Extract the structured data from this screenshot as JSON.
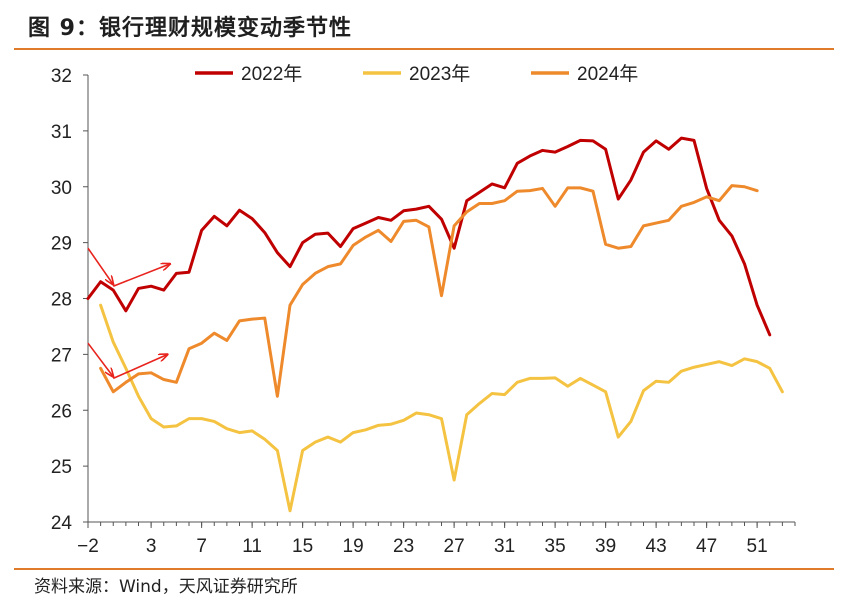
{
  "title": "图 9：银行理财规模变动季节性",
  "source": "资料来源：Wind，天风证券研究所",
  "colors": {
    "s2022": "#c00000",
    "s2023": "#f5c342",
    "s2024": "#ee8a2c",
    "arrow": "#e8231d",
    "axis": "#555555",
    "rule": "#e07b2a"
  },
  "chart_data": {
    "type": "line",
    "ylim": [
      24,
      32
    ],
    "yticks": [
      24,
      25,
      26,
      27,
      28,
      29,
      30,
      31,
      32
    ],
    "xlim": [
      -2,
      54
    ],
    "xticks": [
      -2,
      3,
      7,
      11,
      15,
      19,
      23,
      27,
      31,
      35,
      39,
      43,
      47,
      51
    ],
    "xtick_labels": [
      "−2",
      "3",
      "7",
      "11",
      "15",
      "19",
      "23",
      "27",
      "31",
      "35",
      "39",
      "43",
      "47",
      "51"
    ],
    "legend_position": "top",
    "grid": false,
    "series": [
      {
        "name": "2022年",
        "color": "#c00000",
        "x": [
          -2,
          -1,
          0,
          1,
          2,
          3,
          4,
          5,
          6,
          7,
          8,
          9,
          10,
          11,
          12,
          13,
          14,
          15,
          16,
          17,
          18,
          19,
          20,
          21,
          22,
          23,
          24,
          25,
          26,
          27,
          28,
          29,
          30,
          31,
          32,
          33,
          34,
          35,
          36,
          37,
          38,
          39,
          40,
          41,
          42,
          43,
          44,
          45,
          46,
          47,
          48,
          49,
          50,
          51,
          52,
          53
        ],
        "y": [
          28.0,
          28.3,
          28.15,
          27.78,
          28.18,
          28.22,
          28.15,
          28.45,
          28.47,
          29.22,
          29.47,
          29.3,
          29.58,
          29.43,
          29.18,
          28.82,
          28.57,
          29.0,
          29.15,
          29.17,
          28.93,
          29.25,
          29.35,
          29.45,
          29.4,
          29.57,
          29.6,
          29.65,
          29.42,
          28.9,
          29.75,
          29.9,
          30.05,
          29.98,
          30.42,
          30.55,
          30.65,
          30.62,
          30.72,
          30.83,
          30.82,
          30.67,
          29.78,
          30.12,
          30.62,
          30.82,
          30.67,
          30.87,
          30.83,
          29.97,
          29.4,
          29.12,
          28.62,
          27.88,
          27.35,
          null
        ]
      },
      {
        "name": "2023年",
        "color": "#f5c342",
        "x": [
          -2,
          -1,
          0,
          1,
          2,
          3,
          4,
          5,
          6,
          7,
          8,
          9,
          10,
          11,
          12,
          13,
          14,
          15,
          16,
          17,
          18,
          19,
          20,
          21,
          22,
          23,
          24,
          25,
          26,
          27,
          28,
          29,
          30,
          31,
          32,
          33,
          34,
          35,
          36,
          37,
          38,
          39,
          40,
          41,
          42,
          43,
          44,
          45,
          46,
          47,
          48,
          49,
          50,
          51,
          52,
          53
        ],
        "y": [
          null,
          27.88,
          27.22,
          26.75,
          26.25,
          25.85,
          25.7,
          25.72,
          25.85,
          25.85,
          25.8,
          25.67,
          25.6,
          25.63,
          25.48,
          25.28,
          24.2,
          25.28,
          25.43,
          25.52,
          25.43,
          25.6,
          25.65,
          25.73,
          25.75,
          25.82,
          25.95,
          25.92,
          25.85,
          24.75,
          25.92,
          26.12,
          26.3,
          26.28,
          26.5,
          26.57,
          26.57,
          26.58,
          26.43,
          26.57,
          26.45,
          26.33,
          25.52,
          25.8,
          26.35,
          26.52,
          26.5,
          26.7,
          26.77,
          26.82,
          26.87,
          26.8,
          26.92,
          26.87,
          26.75,
          26.33
        ]
      },
      {
        "name": "2024年",
        "color": "#ee8a2c",
        "x": [
          -2,
          -1,
          0,
          1,
          2,
          3,
          4,
          5,
          6,
          7,
          8,
          9,
          10,
          11,
          12,
          13,
          14,
          15,
          16,
          17,
          18,
          19,
          20,
          21,
          22,
          23,
          24,
          25,
          26,
          27,
          28,
          29,
          30,
          31,
          32,
          33,
          34,
          35,
          36,
          37,
          38,
          39,
          40,
          41,
          42,
          43,
          44,
          45,
          46,
          47,
          48,
          49,
          50,
          51,
          52,
          53
        ],
        "y": [
          null,
          26.75,
          26.33,
          26.5,
          26.65,
          26.67,
          26.55,
          26.5,
          27.1,
          27.2,
          27.38,
          27.25,
          27.6,
          27.63,
          27.65,
          26.25,
          27.88,
          28.25,
          28.45,
          28.57,
          28.62,
          28.95,
          29.1,
          29.22,
          29.02,
          29.38,
          29.4,
          29.28,
          28.05,
          29.3,
          29.55,
          29.7,
          29.7,
          29.75,
          29.92,
          29.93,
          29.97,
          29.65,
          29.98,
          29.98,
          29.92,
          28.97,
          28.9,
          28.93,
          29.3,
          29.35,
          29.4,
          29.65,
          29.72,
          29.82,
          29.75,
          30.02,
          30.0,
          29.93,
          null,
          null
        ]
      }
    ],
    "annotations": [
      {
        "type": "arrow",
        "from": [
          -2.0,
          28.9
        ],
        "to": [
          0.0,
          28.25
        ]
      },
      {
        "type": "arrow",
        "from": [
          0.0,
          28.22
        ],
        "to": [
          4.5,
          28.62
        ]
      },
      {
        "type": "arrow",
        "from": [
          -2.0,
          27.2
        ],
        "to": [
          0.0,
          26.6
        ]
      },
      {
        "type": "arrow",
        "from": [
          0.0,
          26.57
        ],
        "to": [
          4.3,
          27.0
        ]
      }
    ]
  }
}
